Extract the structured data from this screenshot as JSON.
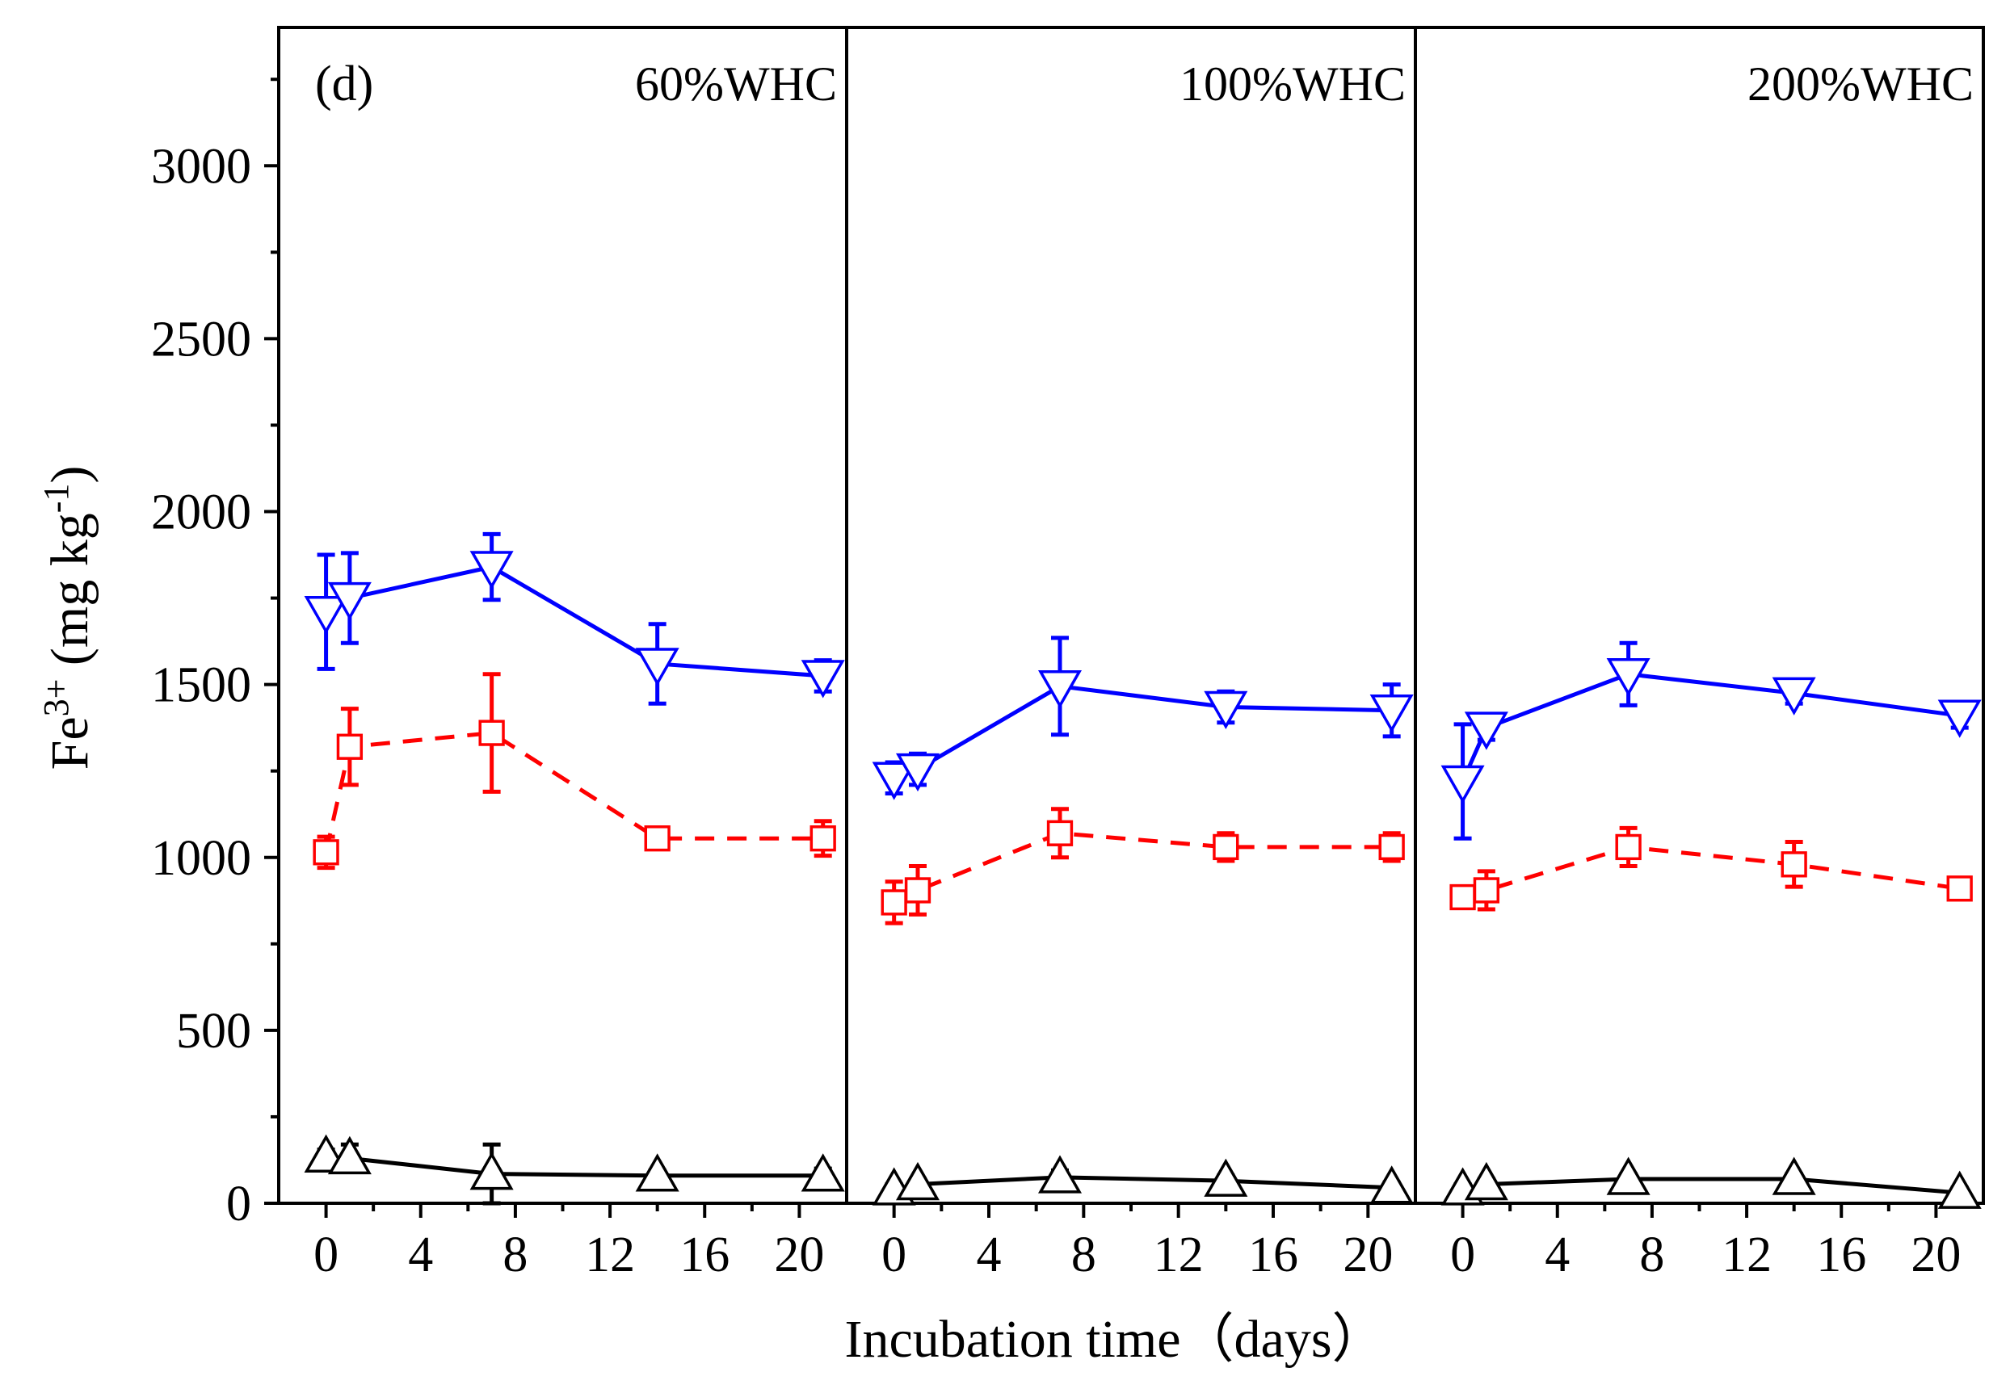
{
  "chart_data": {
    "type": "line",
    "panel_letter": "(d)",
    "ylabel_base": "Fe",
    "ylabel_sup": "3+",
    "ylabel_units_pre": " (mg kg",
    "ylabel_units_sup": "-1",
    "ylabel_units_post": ")",
    "xlabel": "Incubation time（days）",
    "ylim": [
      0,
      3400
    ],
    "yticks": [
      0,
      500,
      1000,
      1500,
      2000,
      2500,
      3000
    ],
    "xlim": [
      -2,
      22
    ],
    "xticks": [
      0,
      4,
      8,
      12,
      16,
      20
    ],
    "x": [
      0,
      1,
      7,
      14,
      21
    ],
    "colors": {
      "blue": "#0000ff",
      "red": "#ff0000",
      "black": "#000000"
    },
    "panels": [
      {
        "label": "60%WHC",
        "series": [
          {
            "name": "blue",
            "marker": "triangle-down",
            "dash": false,
            "values": [
              1710,
              1750,
              1840,
              1560,
              1525
            ],
            "errors": [
              165,
              130,
              95,
              115,
              45
            ]
          },
          {
            "name": "red",
            "marker": "square",
            "dash": true,
            "values": [
              1015,
              1320,
              1360,
              1055,
              1055
            ],
            "errors": [
              45,
              110,
              170,
              20,
              50
            ]
          },
          {
            "name": "black",
            "marker": "triangle-up",
            "dash": false,
            "values": [
              135,
              130,
              85,
              80,
              80
            ],
            "errors": [
              20,
              40,
              85,
              15,
              20
            ]
          }
        ]
      },
      {
        "label": "100%WHC",
        "series": [
          {
            "name": "blue",
            "marker": "triangle-down",
            "dash": false,
            "values": [
              1230,
              1255,
              1495,
              1435,
              1425
            ],
            "errors": [
              45,
              45,
              140,
              45,
              75
            ]
          },
          {
            "name": "red",
            "marker": "square",
            "dash": true,
            "values": [
              870,
              905,
              1070,
              1030,
              1030
            ],
            "errors": [
              60,
              70,
              70,
              40,
              40
            ]
          },
          {
            "name": "black",
            "marker": "triangle-up",
            "dash": false,
            "values": [
              40,
              55,
              75,
              65,
              45
            ],
            "errors": [
              15,
              15,
              20,
              15,
              15
            ]
          }
        ]
      },
      {
        "label": "200%WHC",
        "series": [
          {
            "name": "blue",
            "marker": "triangle-down",
            "dash": false,
            "values": [
              1220,
              1375,
              1530,
              1475,
              1410
            ],
            "errors": [
              165,
              35,
              90,
              30,
              35
            ]
          },
          {
            "name": "red",
            "marker": "square",
            "dash": true,
            "values": [
              885,
              905,
              1030,
              980,
              910
            ],
            "errors": [
              20,
              55,
              55,
              65,
              20
            ]
          },
          {
            "name": "black",
            "marker": "triangle-up",
            "dash": false,
            "values": [
              40,
              55,
              70,
              70,
              30
            ],
            "errors": [
              15,
              15,
              15,
              15,
              15
            ]
          }
        ]
      }
    ]
  }
}
